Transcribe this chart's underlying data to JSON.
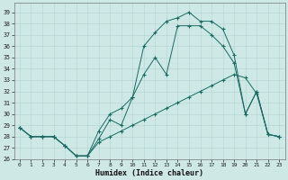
{
  "xlabel": "Humidex (Indice chaleur)",
  "xlim": [
    -0.5,
    23.5
  ],
  "ylim": [
    26,
    39.8
  ],
  "yticks": [
    26,
    27,
    28,
    29,
    30,
    31,
    32,
    33,
    34,
    35,
    36,
    37,
    38,
    39
  ],
  "xticks": [
    0,
    1,
    2,
    3,
    4,
    5,
    6,
    7,
    8,
    9,
    10,
    11,
    12,
    13,
    14,
    15,
    16,
    17,
    18,
    19,
    20,
    21,
    22,
    23
  ],
  "bg_color": "#cde8e5",
  "line_color": "#1b6b63",
  "grid_color": "#b8d8d5",
  "line1_x": [
    0,
    1,
    2,
    3,
    4,
    5,
    6,
    7,
    8,
    9,
    10,
    11,
    12,
    13,
    14,
    15,
    16,
    17,
    18,
    19,
    20,
    21,
    22,
    23
  ],
  "line1_y": [
    28.8,
    28.0,
    28.0,
    28.0,
    27.2,
    26.3,
    26.3,
    27.5,
    28.0,
    28.5,
    29.0,
    29.5,
    30.0,
    30.5,
    31.0,
    31.5,
    32.0,
    32.5,
    33.0,
    33.5,
    33.2,
    31.8,
    28.2,
    28.0
  ],
  "line2_x": [
    0,
    1,
    2,
    3,
    4,
    5,
    6,
    7,
    8,
    9,
    10,
    11,
    12,
    13,
    14,
    15,
    16,
    17,
    18,
    19,
    20,
    21,
    22,
    23
  ],
  "line2_y": [
    28.8,
    28.0,
    28.0,
    28.0,
    27.2,
    26.3,
    26.3,
    28.5,
    30.0,
    30.5,
    31.5,
    33.5,
    35.0,
    33.5,
    37.8,
    37.8,
    37.8,
    37.0,
    36.0,
    34.5,
    30.0,
    32.0,
    28.2,
    28.0
  ],
  "line3_x": [
    0,
    1,
    2,
    3,
    4,
    5,
    6,
    7,
    8,
    9,
    10,
    11,
    12,
    13,
    14,
    15,
    16,
    17,
    18,
    19,
    20,
    21,
    22,
    23
  ],
  "line3_y": [
    28.8,
    28.0,
    28.0,
    28.0,
    27.2,
    26.3,
    26.3,
    27.8,
    29.5,
    29.0,
    31.5,
    36.0,
    37.2,
    38.2,
    38.5,
    39.0,
    38.2,
    38.2,
    37.5,
    35.2,
    30.0,
    32.0,
    28.2,
    28.0
  ]
}
